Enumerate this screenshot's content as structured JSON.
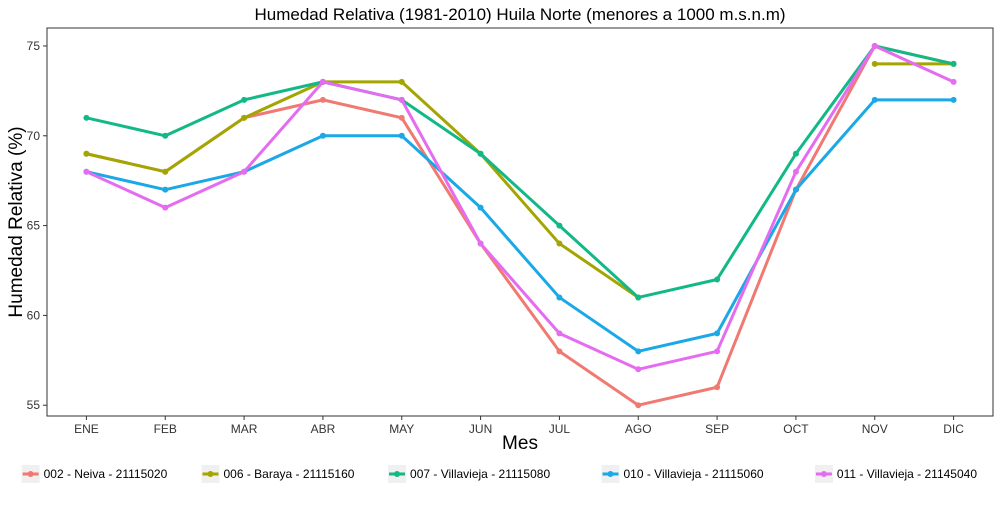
{
  "chart_data": {
    "type": "line",
    "title": "Humedad Relativa (1981-2010) Huila Norte (menores a 1000 m.s.n.m)",
    "xlabel": "Mes",
    "ylabel": "Humedad Relativa (%)",
    "categories": [
      "ENE",
      "FEB",
      "MAR",
      "ABR",
      "MAY",
      "JUN",
      "JUL",
      "AGO",
      "SEP",
      "OCT",
      "NOV",
      "DIC"
    ],
    "ylim": [
      54.4,
      76.0
    ],
    "yticks": [
      55,
      60,
      65,
      70,
      75
    ],
    "grid": false,
    "legend_position": "bottom",
    "series": [
      {
        "name": "002 - Neiva - 21115020",
        "color": "#F07A72",
        "values": [
          69,
          68,
          71,
          72,
          71,
          64,
          58,
          55,
          56,
          67,
          75,
          74
        ]
      },
      {
        "name": "006 - Baraya - 21115160",
        "color": "#A3A500",
        "values": [
          69,
          68,
          71,
          73,
          73,
          69,
          64,
          61,
          null,
          null,
          74,
          74
        ]
      },
      {
        "name": "007 - Villavieja - 21115080",
        "color": "#12B886",
        "values": [
          71,
          70,
          72,
          73,
          72,
          69,
          65,
          61,
          62,
          69,
          75,
          74
        ]
      },
      {
        "name": "010 - Villavieja - 21115060",
        "color": "#1AA8E6",
        "values": [
          68,
          67,
          68,
          70,
          70,
          66,
          61,
          58,
          59,
          67,
          72,
          72
        ]
      },
      {
        "name": "011 - Villavieja - 21145040",
        "color": "#E56CF0",
        "values": [
          68,
          66,
          68,
          73,
          72,
          64,
          59,
          57,
          58,
          68,
          75,
          73
        ]
      }
    ]
  }
}
